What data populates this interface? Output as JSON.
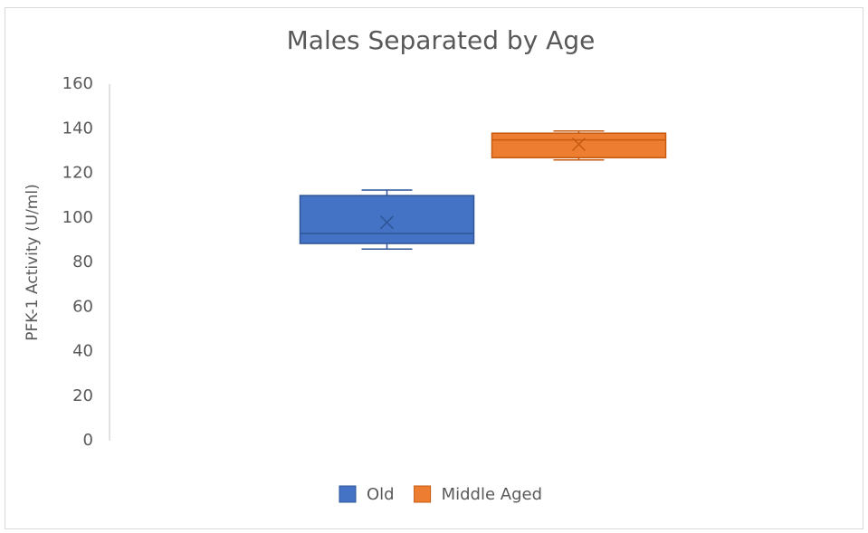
{
  "chart_data": {
    "type": "box",
    "title": "Males Separated by Age",
    "y_label": "PFK-1 Activity (U/ml)",
    "ylim": [
      0,
      160
    ],
    "yticks": [
      0,
      20,
      40,
      60,
      80,
      100,
      120,
      140,
      160
    ],
    "grid": false,
    "legend": "bottom",
    "series": [
      {
        "name": "Old",
        "color": "#4472c4",
        "edge": "#2f5597",
        "min": 86,
        "q1": 88.5,
        "median": 93,
        "q3": 110,
        "max": 112.5,
        "mean": 98
      },
      {
        "name": "Middle Aged",
        "color": "#ed7d31",
        "edge": "#c55a11",
        "min": 126,
        "q1": 127,
        "median": 135,
        "q3": 138,
        "max": 139,
        "mean": 133
      }
    ]
  }
}
